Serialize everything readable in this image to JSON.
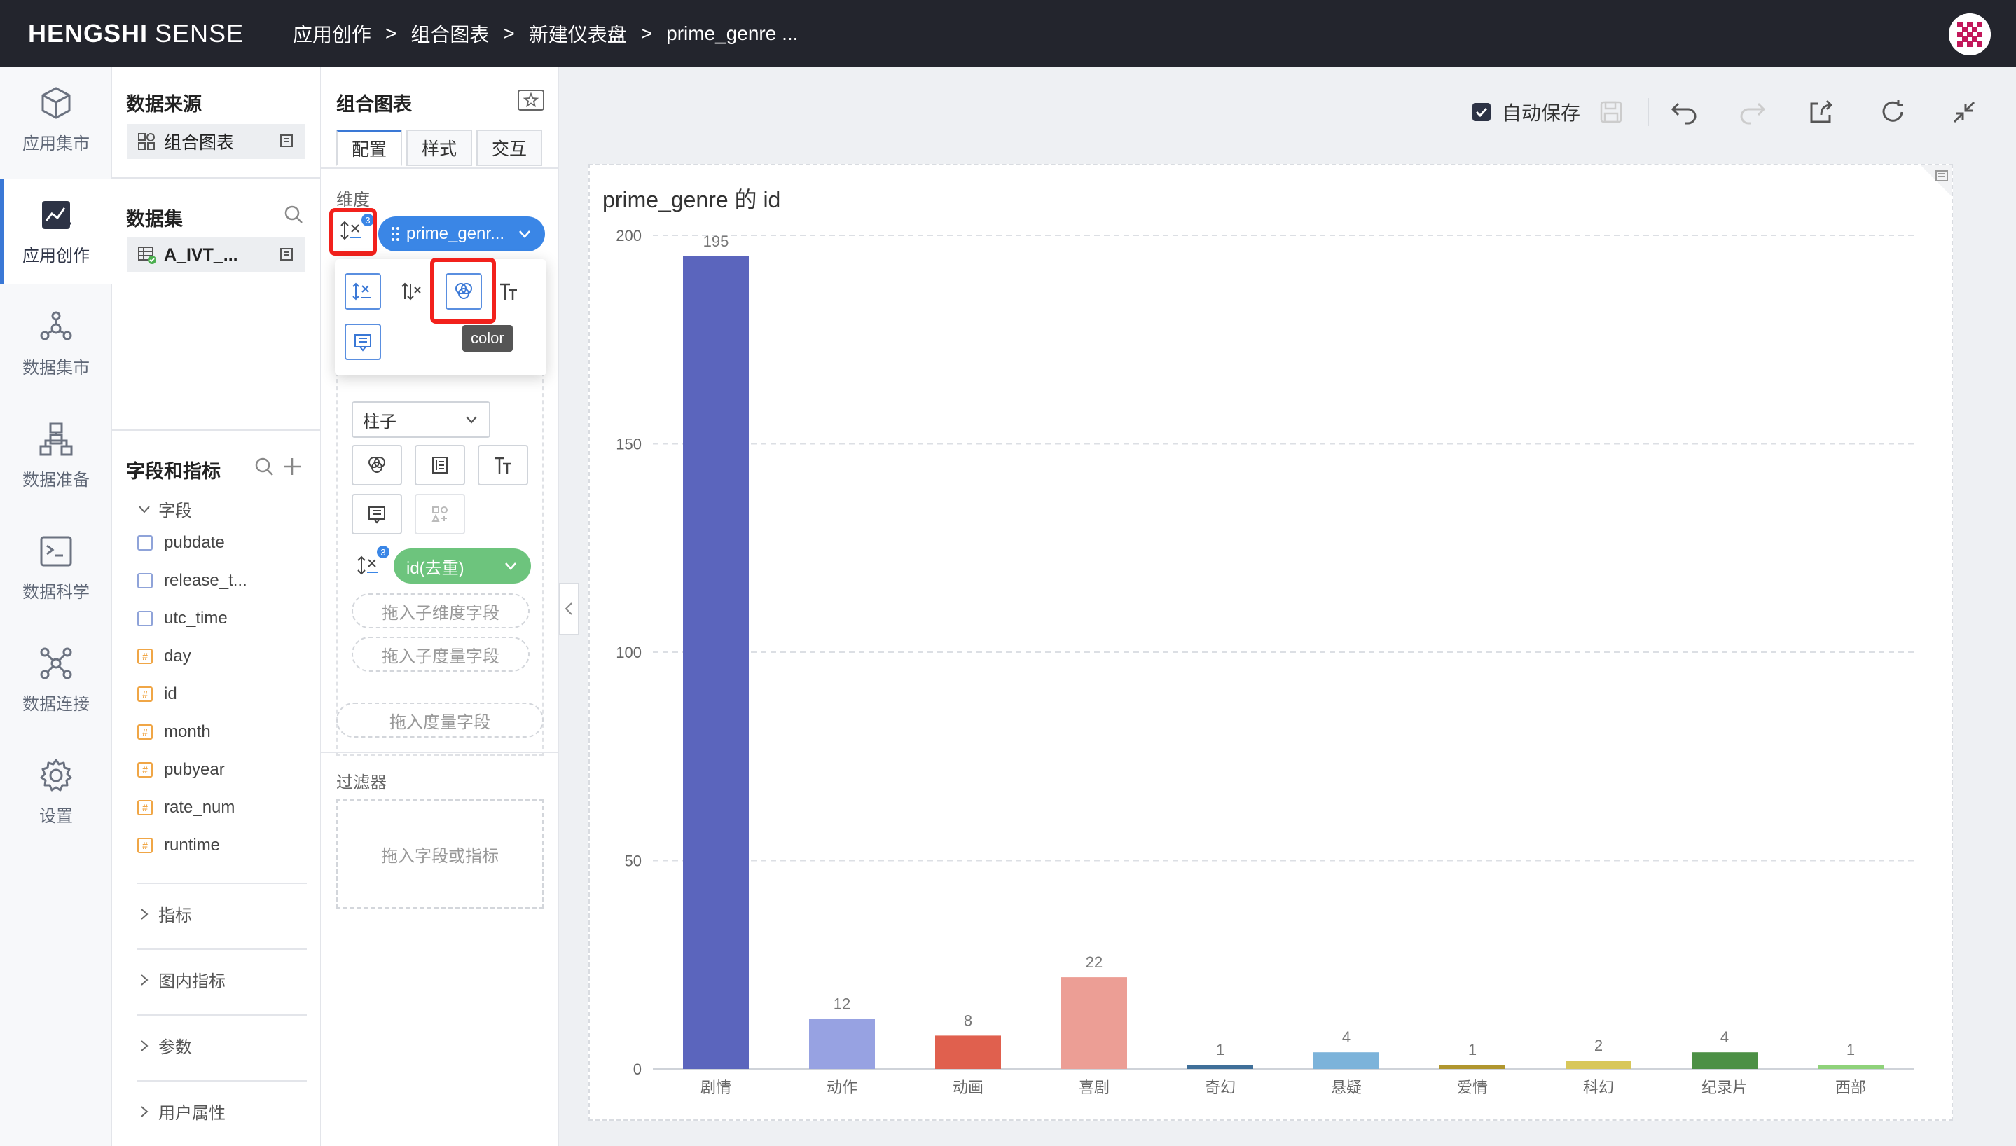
{
  "app": {
    "brand_bold": "HENGSHI",
    "brand_light": "SENSE"
  },
  "breadcrumb": [
    "应用创作",
    "组合图表",
    "新建仪表盘",
    "prime_genre ..."
  ],
  "breadcrumb_sep": ">",
  "nav": [
    {
      "label": "应用集市",
      "icon": "cube-icon"
    },
    {
      "label": "应用创作",
      "icon": "chart-edit-icon",
      "active": true
    },
    {
      "label": "数据集市",
      "icon": "network-icon"
    },
    {
      "label": "数据准备",
      "icon": "data-prep-icon"
    },
    {
      "label": "数据科学",
      "icon": "terminal-icon"
    },
    {
      "label": "数据连接",
      "icon": "connection-icon"
    },
    {
      "label": "设置",
      "icon": "gear-icon"
    }
  ],
  "source": {
    "title": "数据来源",
    "chip": "组合图表",
    "dataset_title": "数据集",
    "dataset_chip": "A_IVT_..."
  },
  "fields": {
    "title": "字段和指标",
    "group_fields": "字段",
    "items": [
      {
        "name": "pubdate",
        "type": "date"
      },
      {
        "name": "release_t...",
        "type": "date"
      },
      {
        "name": "utc_time",
        "type": "date"
      },
      {
        "name": "day",
        "type": "num"
      },
      {
        "name": "id",
        "type": "num"
      },
      {
        "name": "month",
        "type": "num"
      },
      {
        "name": "pubyear",
        "type": "num"
      },
      {
        "name": "rate_num",
        "type": "num"
      },
      {
        "name": "runtime",
        "type": "num"
      }
    ],
    "groups": [
      "指标",
      "图内指标",
      "参数",
      "用户属性"
    ]
  },
  "config": {
    "title": "组合图表",
    "tabs": [
      "配置",
      "样式",
      "交互"
    ],
    "dimension_label": "维度",
    "dimension_pill": "prime_genr...",
    "badge_count": "3",
    "chart_type": "柱子",
    "measure_pill": "id(去重)",
    "drop_sub_dim": "拖入子维度字段",
    "drop_sub_measure": "拖入子度量字段",
    "drop_measure": "拖入度量字段",
    "filter_label": "过滤器",
    "drop_filter": "拖入字段或指标",
    "tooltip": "color"
  },
  "toolbar": {
    "autosave_label": "自动保存",
    "autosave_checked": true
  },
  "colors": {
    "accent": "#3a78d6",
    "highlight_red": "#f2211c",
    "pill_blue": "#3a86e6",
    "pill_green": "#6dc47d"
  },
  "chart_data": {
    "type": "bar",
    "title": "prime_genre 的 id",
    "categories": [
      "剧情",
      "动作",
      "动画",
      "喜剧",
      "奇幻",
      "悬疑",
      "爱情",
      "科幻",
      "纪录片",
      "西部"
    ],
    "values": [
      195,
      12,
      8,
      22,
      1,
      4,
      1,
      2,
      4,
      1
    ],
    "colors": [
      "#5b65bd",
      "#97a2e2",
      "#e0604e",
      "#ec9e95",
      "#3f6f99",
      "#7cb3da",
      "#b0962e",
      "#d8c75a",
      "#4c9045",
      "#8fd27a"
    ],
    "ylim": [
      0,
      200
    ],
    "yticks": [
      0,
      50,
      100,
      150,
      200
    ],
    "grid": true,
    "data_labels": true
  }
}
